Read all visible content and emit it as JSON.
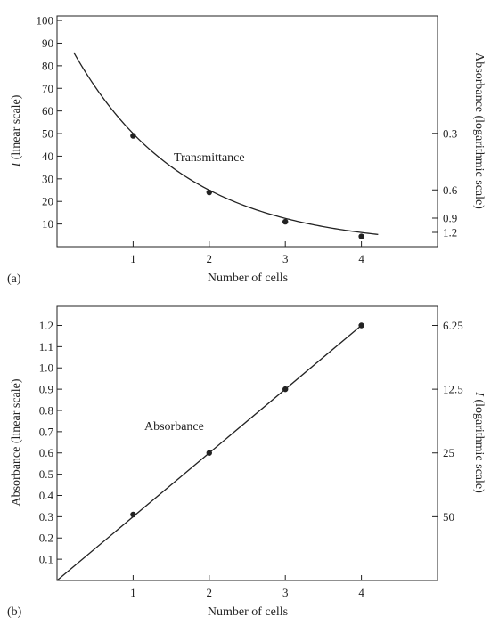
{
  "chart_data": [
    {
      "type": "line",
      "panel_label": "(a)",
      "xlabel": "Number of cells",
      "xlim": [
        0,
        5
      ],
      "x_ticks": [
        1,
        2,
        3,
        4
      ],
      "ylabel_italic": "I",
      "ylabel_rest": " (linear scale)",
      "ylim": [
        0,
        102
      ],
      "y_ticks": [
        10,
        20,
        30,
        40,
        50,
        60,
        70,
        80,
        90,
        100
      ],
      "right_axis": {
        "label": "Absorbance (logarithmic scale)",
        "ticks": [
          "0.3",
          "0.6",
          "0.9",
          "1.2"
        ],
        "tick_positions_left_units": [
          50.1,
          25.1,
          12.6,
          6.3
        ]
      },
      "annotation": "Transmittance",
      "curve": {
        "y_at_zero": 100,
        "factor_per_cell": 0.5,
        "x_start": 0.22,
        "x_end": 4.22
      },
      "points": [
        {
          "x": 1,
          "y": 49
        },
        {
          "x": 2,
          "y": 24
        },
        {
          "x": 3,
          "y": 11
        },
        {
          "x": 4,
          "y": 4.5
        }
      ]
    },
    {
      "type": "line",
      "panel_label": "(b)",
      "xlabel": "Number of cells",
      "xlim": [
        0,
        5
      ],
      "x_ticks": [
        1,
        2,
        3,
        4
      ],
      "ylabel": "Absorbance (linear scale)",
      "ylim": [
        0,
        1.29
      ],
      "y_ticks": [
        0.1,
        0.2,
        0.3,
        0.4,
        0.5,
        0.6,
        0.7,
        0.8,
        0.9,
        1.0,
        1.1,
        1.2
      ],
      "y_tick_labels": [
        "0.1",
        "0.2",
        "0.3",
        "0.4",
        "0.5",
        "0.6",
        "0.7",
        "0.8",
        "0.9",
        "1.0",
        "1.1",
        "1.2"
      ],
      "right_axis": {
        "label_italic": "I",
        "label_rest": " (logarithmic scale)",
        "ticks": [
          "6.25",
          "12.5",
          "25",
          "50"
        ],
        "tick_positions_left_units": [
          1.2,
          0.9,
          0.6,
          0.3
        ]
      },
      "annotation": "Absorbance",
      "line": {
        "x": [
          0,
          4
        ],
        "y": [
          0,
          1.2
        ]
      },
      "points": [
        {
          "x": 1,
          "y": 0.31
        },
        {
          "x": 2,
          "y": 0.6
        },
        {
          "x": 3,
          "y": 0.9
        },
        {
          "x": 4,
          "y": 1.2
        }
      ]
    }
  ]
}
